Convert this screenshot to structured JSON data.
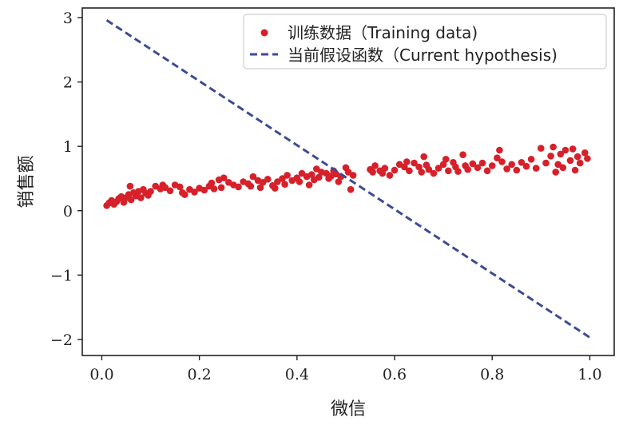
{
  "chart_data": {
    "type": "scatter",
    "xlabel": "微信",
    "ylabel": "销售额",
    "xlim": [
      -0.04,
      1.05
    ],
    "ylim": [
      -2.25,
      3.15
    ],
    "xticks": [
      0.0,
      0.2,
      0.4,
      0.6,
      0.8,
      1.0
    ],
    "xtick_labels": [
      "0.0",
      "0.2",
      "0.4",
      "0.6",
      "0.8",
      "1.0"
    ],
    "yticks": [
      3,
      2,
      1,
      0,
      -1,
      -2
    ],
    "ytick_labels": [
      "3",
      "2",
      "1",
      "0",
      "−1",
      "−2"
    ],
    "legend_position": "top-right",
    "series": [
      {
        "name": "训练数据（Training data)",
        "kind": "scatter",
        "color": "#d7202a",
        "points": [
          [
            0.01,
            0.08
          ],
          [
            0.015,
            0.12
          ],
          [
            0.02,
            0.16
          ],
          [
            0.025,
            0.1
          ],
          [
            0.03,
            0.14
          ],
          [
            0.035,
            0.19
          ],
          [
            0.04,
            0.22
          ],
          [
            0.045,
            0.13
          ],
          [
            0.05,
            0.2
          ],
          [
            0.055,
            0.25
          ],
          [
            0.058,
            0.38
          ],
          [
            0.06,
            0.17
          ],
          [
            0.065,
            0.28
          ],
          [
            0.07,
            0.23
          ],
          [
            0.075,
            0.3
          ],
          [
            0.08,
            0.2
          ],
          [
            0.085,
            0.33
          ],
          [
            0.09,
            0.27
          ],
          [
            0.095,
            0.24
          ],
          [
            0.1,
            0.3
          ],
          [
            0.11,
            0.38
          ],
          [
            0.12,
            0.34
          ],
          [
            0.125,
            0.4
          ],
          [
            0.13,
            0.36
          ],
          [
            0.14,
            0.31
          ],
          [
            0.15,
            0.4
          ],
          [
            0.16,
            0.37
          ],
          [
            0.165,
            0.28
          ],
          [
            0.17,
            0.25
          ],
          [
            0.18,
            0.33
          ],
          [
            0.19,
            0.29
          ],
          [
            0.2,
            0.35
          ],
          [
            0.21,
            0.32
          ],
          [
            0.22,
            0.38
          ],
          [
            0.225,
            0.43
          ],
          [
            0.23,
            0.34
          ],
          [
            0.24,
            0.48
          ],
          [
            0.245,
            0.36
          ],
          [
            0.25,
            0.51
          ],
          [
            0.26,
            0.44
          ],
          [
            0.27,
            0.4
          ],
          [
            0.28,
            0.37
          ],
          [
            0.29,
            0.45
          ],
          [
            0.3,
            0.42
          ],
          [
            0.305,
            0.38
          ],
          [
            0.31,
            0.53
          ],
          [
            0.32,
            0.47
          ],
          [
            0.325,
            0.36
          ],
          [
            0.33,
            0.44
          ],
          [
            0.34,
            0.49
          ],
          [
            0.35,
            0.39
          ],
          [
            0.355,
            0.35
          ],
          [
            0.36,
            0.45
          ],
          [
            0.37,
            0.5
          ],
          [
            0.375,
            0.41
          ],
          [
            0.38,
            0.55
          ],
          [
            0.39,
            0.47
          ],
          [
            0.4,
            0.51
          ],
          [
            0.405,
            0.45
          ],
          [
            0.41,
            0.58
          ],
          [
            0.42,
            0.53
          ],
          [
            0.425,
            0.4
          ],
          [
            0.43,
            0.56
          ],
          [
            0.435,
            0.48
          ],
          [
            0.44,
            0.65
          ],
          [
            0.445,
            0.52
          ],
          [
            0.45,
            0.6
          ],
          [
            0.46,
            0.58
          ],
          [
            0.465,
            0.5
          ],
          [
            0.47,
            0.54
          ],
          [
            0.475,
            0.62
          ],
          [
            0.48,
            0.57
          ],
          [
            0.485,
            0.45
          ],
          [
            0.49,
            0.53
          ],
          [
            0.5,
            0.67
          ],
          [
            0.505,
            0.6
          ],
          [
            0.51,
            0.33
          ],
          [
            0.515,
            0.55
          ],
          [
            0.55,
            0.64
          ],
          [
            0.555,
            0.6
          ],
          [
            0.56,
            0.7
          ],
          [
            0.57,
            0.62
          ],
          [
            0.575,
            0.58
          ],
          [
            0.58,
            0.66
          ],
          [
            0.59,
            0.55
          ],
          [
            0.6,
            0.63
          ],
          [
            0.61,
            0.72
          ],
          [
            0.62,
            0.68
          ],
          [
            0.625,
            0.76
          ],
          [
            0.63,
            0.62
          ],
          [
            0.64,
            0.74
          ],
          [
            0.65,
            0.68
          ],
          [
            0.655,
            0.6
          ],
          [
            0.66,
            0.84
          ],
          [
            0.665,
            0.71
          ],
          [
            0.67,
            0.64
          ],
          [
            0.68,
            0.58
          ],
          [
            0.69,
            0.66
          ],
          [
            0.7,
            0.72
          ],
          [
            0.705,
            0.8
          ],
          [
            0.71,
            0.62
          ],
          [
            0.72,
            0.75
          ],
          [
            0.725,
            0.68
          ],
          [
            0.73,
            0.61
          ],
          [
            0.74,
            0.87
          ],
          [
            0.745,
            0.7
          ],
          [
            0.75,
            0.64
          ],
          [
            0.76,
            0.73
          ],
          [
            0.77,
            0.67
          ],
          [
            0.78,
            0.74
          ],
          [
            0.79,
            0.62
          ],
          [
            0.8,
            0.7
          ],
          [
            0.81,
            0.82
          ],
          [
            0.815,
            0.94
          ],
          [
            0.82,
            0.76
          ],
          [
            0.83,
            0.65
          ],
          [
            0.84,
            0.72
          ],
          [
            0.85,
            0.63
          ],
          [
            0.86,
            0.75
          ],
          [
            0.87,
            0.69
          ],
          [
            0.88,
            0.8
          ],
          [
            0.89,
            0.66
          ],
          [
            0.9,
            0.97
          ],
          [
            0.91,
            0.74
          ],
          [
            0.92,
            0.85
          ],
          [
            0.925,
            0.99
          ],
          [
            0.93,
            0.6
          ],
          [
            0.935,
            0.72
          ],
          [
            0.94,
            0.88
          ],
          [
            0.945,
            0.67
          ],
          [
            0.95,
            0.94
          ],
          [
            0.96,
            0.78
          ],
          [
            0.965,
            0.96
          ],
          [
            0.97,
            0.63
          ],
          [
            0.975,
            0.84
          ],
          [
            0.98,
            0.74
          ],
          [
            0.99,
            0.9
          ],
          [
            0.995,
            0.81
          ]
        ]
      },
      {
        "name": "当前假设函数（Current hypothesis)",
        "kind": "line",
        "style": "dashed",
        "color": "#3d4a94",
        "x": [
          0.01,
          1.0
        ],
        "y": [
          2.96,
          -1.97
        ]
      }
    ]
  }
}
